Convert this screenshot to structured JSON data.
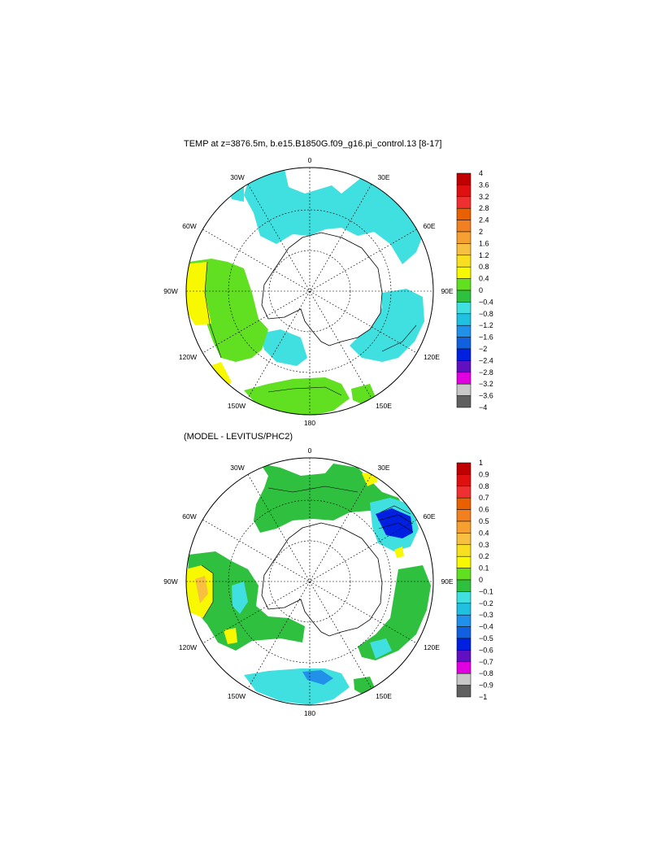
{
  "panel1": {
    "title": "TEMP at z=3876.5m, b.e15.B1850G.f09_g16.pi_control.13 [8-17]",
    "colorbar": {
      "labels": [
        "4",
        "3.6",
        "3.2",
        "2.8",
        "2.4",
        "2",
        "1.6",
        "1.2",
        "0.8",
        "0.4",
        "0",
        "−0.4",
        "−0.8",
        "−1.2",
        "−1.6",
        "−2",
        "−2.4",
        "−2.8",
        "−3.2",
        "−3.6",
        "−4"
      ]
    }
  },
  "panel2": {
    "title": "(MODEL - LEVITUS/PHC2)",
    "colorbar": {
      "labels": [
        "1",
        "0.9",
        "0.8",
        "0.7",
        "0.6",
        "0.5",
        "0.4",
        "0.3",
        "0.2",
        "0.1",
        "0",
        "−0.1",
        "−0.2",
        "−0.3",
        "−0.4",
        "−0.5",
        "−0.6",
        "−0.7",
        "−0.8",
        "−0.9",
        "−1"
      ]
    }
  },
  "colorbar_colors": [
    "#c00000",
    "#e01010",
    "#f03030",
    "#e86000",
    "#f08020",
    "#f5a030",
    "#f8c040",
    "#f8e020",
    "#f8f800",
    "#60e020",
    "#30c040",
    "#40e0e0",
    "#20c0e0",
    "#2090e8",
    "#1060e0",
    "#0020e0",
    "#6010c0",
    "#e000e0",
    "#c8c8c8",
    "#606060"
  ],
  "lon_labels": [
    "0",
    "30E",
    "60E",
    "90E",
    "120E",
    "150E",
    "180",
    "150W",
    "120W",
    "90W",
    "60W",
    "30W"
  ]
}
